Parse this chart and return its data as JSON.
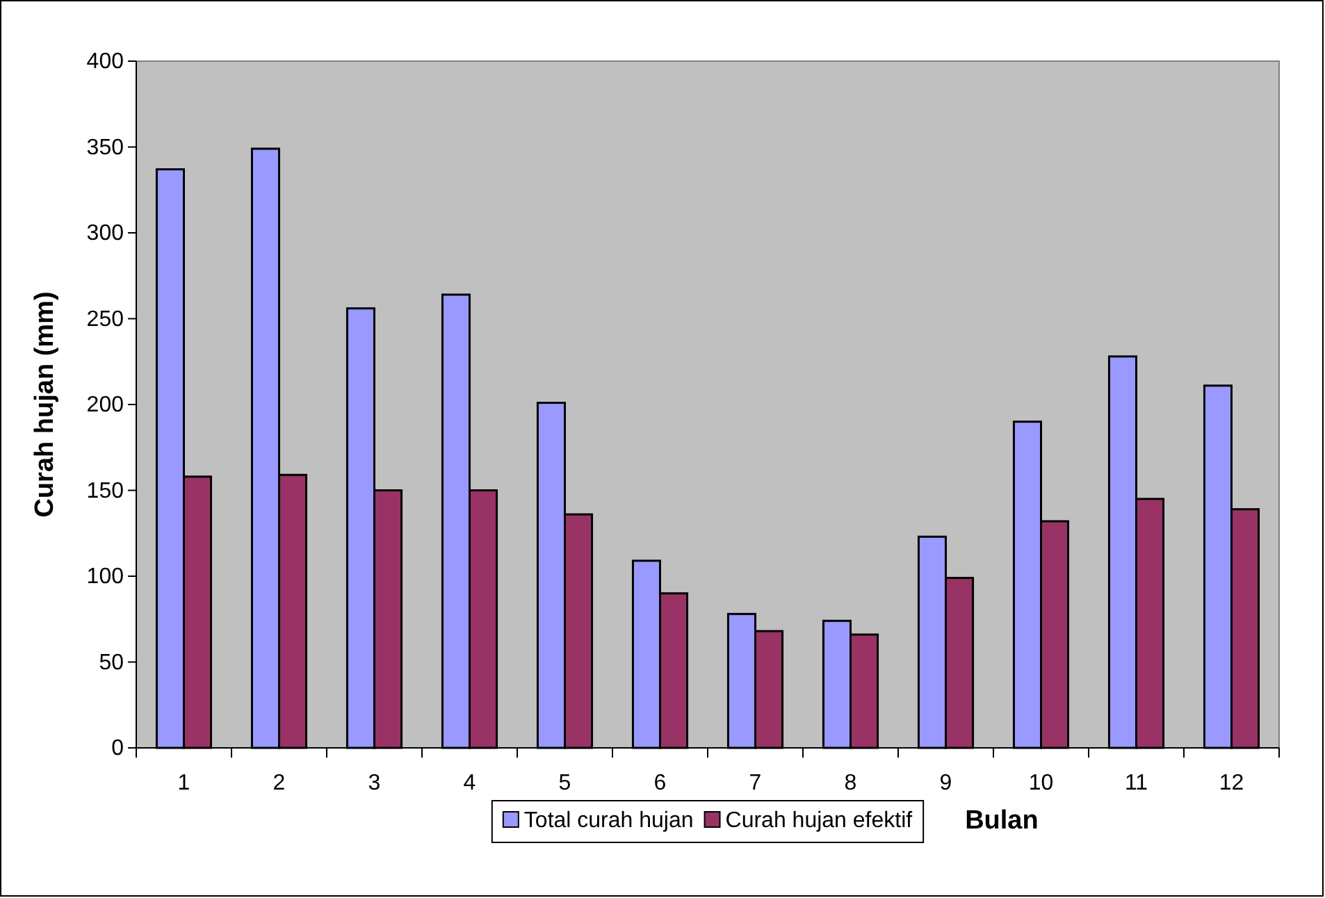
{
  "chart_data": {
    "type": "bar",
    "xlabel": "Bulan",
    "ylabel": "Curah hujan (mm)",
    "categories": [
      "1",
      "2",
      "3",
      "4",
      "5",
      "6",
      "7",
      "8",
      "9",
      "10",
      "11",
      "12"
    ],
    "series": [
      {
        "name": "Total curah hujan",
        "color": "#9999ff",
        "values": [
          337,
          349,
          256,
          264,
          201,
          109,
          78,
          74,
          123,
          190,
          228,
          211
        ]
      },
      {
        "name": "Curah hujan efektif",
        "color": "#993366",
        "values": [
          158,
          159,
          150,
          150,
          136,
          90,
          68,
          66,
          99,
          132,
          145,
          139
        ]
      }
    ],
    "ylim": [
      0,
      400
    ],
    "yticks": [
      0,
      50,
      100,
      150,
      200,
      250,
      300,
      350,
      400
    ],
    "grid": false,
    "legend": "bottom"
  }
}
